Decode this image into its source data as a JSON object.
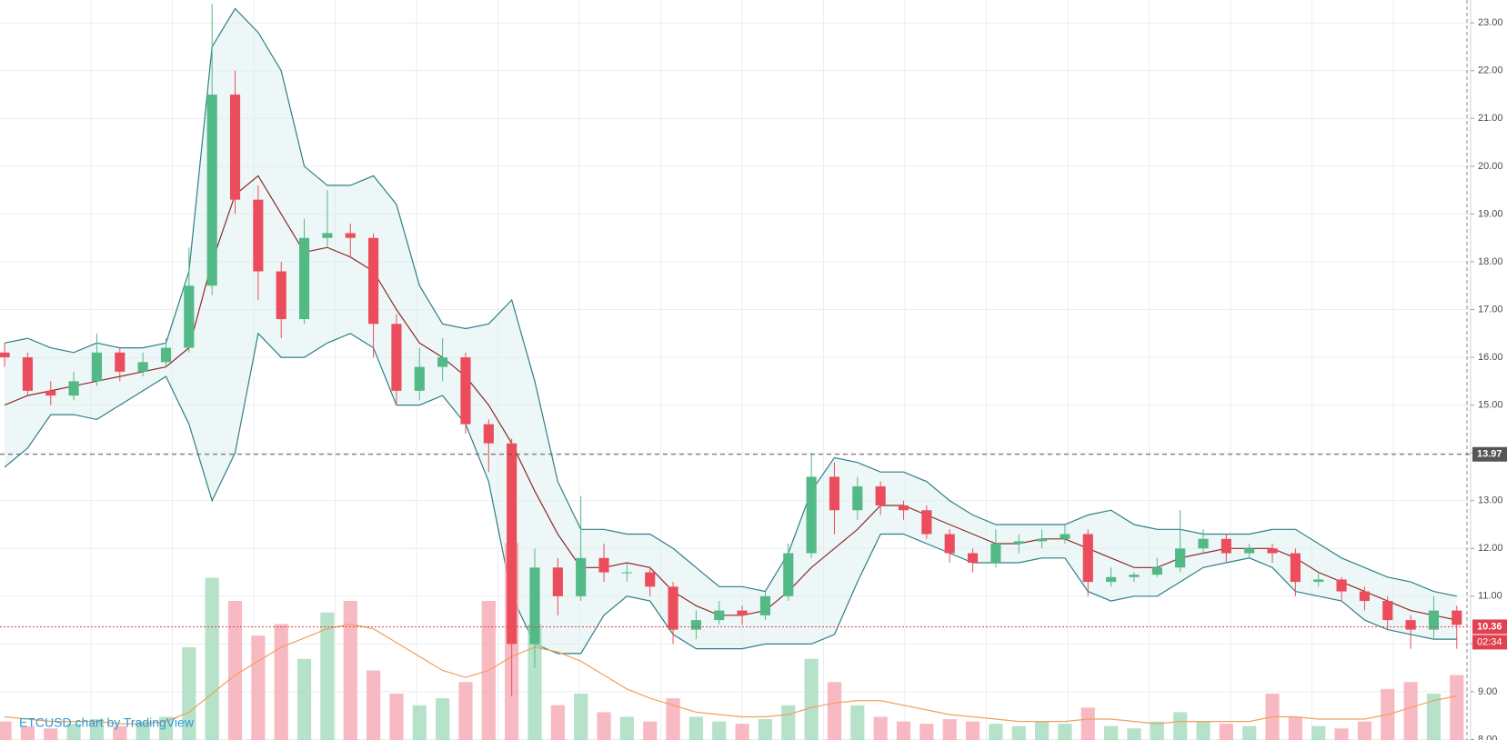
{
  "chart_data": {
    "type": "candlestick",
    "title": "ETCUSD chart by TradingView",
    "x": [
      0,
      1,
      2,
      3,
      4,
      5,
      6,
      7,
      8,
      9,
      10,
      11,
      12,
      13,
      14,
      15,
      16,
      17,
      18,
      19,
      20,
      21,
      22,
      23,
      24,
      25,
      26,
      27,
      28,
      29,
      30,
      31,
      32,
      33,
      34,
      35,
      36,
      37,
      38,
      39,
      40,
      41,
      42,
      43,
      44,
      45,
      46,
      47,
      48,
      49,
      50,
      51,
      52,
      53,
      54,
      55,
      56,
      57,
      58,
      59,
      60,
      61,
      62,
      63
    ],
    "xlim": [
      -0.2,
      63.6
    ],
    "ylim": [
      7.99,
      23.48
    ],
    "yticks": [
      {
        "value": 8,
        "label": "8.00"
      },
      {
        "value": 9,
        "label": "9.00"
      },
      {
        "value": 10,
        "label": "10.00"
      },
      {
        "value": 11,
        "label": "11.00"
      },
      {
        "value": 12,
        "label": "12.00"
      },
      {
        "value": 13,
        "label": "13.00"
      },
      {
        "value": 14,
        "label": "14.00"
      },
      {
        "value": 15,
        "label": "15.00"
      },
      {
        "value": 16,
        "label": "16.00"
      },
      {
        "value": 17,
        "label": "17.00"
      },
      {
        "value": 18,
        "label": "18.00"
      },
      {
        "value": 19,
        "label": "19.00"
      },
      {
        "value": 20,
        "label": "20.00"
      },
      {
        "value": 21,
        "label": "21.00"
      },
      {
        "value": 22,
        "label": "22.00"
      },
      {
        "value": 23,
        "label": "23.00"
      }
    ],
    "grid": true,
    "up_color": "#53b987",
    "down_color": "#eb4d5c",
    "open": [
      16.1,
      16.0,
      15.3,
      15.2,
      15.5,
      16.1,
      15.7,
      15.9,
      16.2,
      17.5,
      21.5,
      19.3,
      17.8,
      16.8,
      18.5,
      18.6,
      18.5,
      16.7,
      15.3,
      15.8,
      16.0,
      14.6,
      14.2,
      10.0,
      11.6,
      11.0,
      11.8,
      11.5,
      11.5,
      11.2,
      10.3,
      10.5,
      10.7,
      10.6,
      11.0,
      11.9,
      13.5,
      12.8,
      13.3,
      12.9,
      12.8,
      12.3,
      11.9,
      11.7,
      12.1,
      12.15,
      12.2,
      12.3,
      11.3,
      11.4,
      11.45,
      11.6,
      12.0,
      12.2,
      11.9,
      12.0,
      11.9,
      11.3,
      11.35,
      11.1,
      10.9,
      10.5,
      10.3,
      10.7
    ],
    "high": [
      16.3,
      16.1,
      15.5,
      15.7,
      16.5,
      16.2,
      16.1,
      16.4,
      18.3,
      23.4,
      22.0,
      19.6,
      18.0,
      18.9,
      19.5,
      18.8,
      18.6,
      16.9,
      16.2,
      16.4,
      16.1,
      14.7,
      14.3,
      12.0,
      11.8,
      13.1,
      12.1,
      11.7,
      11.6,
      11.3,
      10.7,
      10.9,
      10.8,
      11.1,
      12.1,
      14.0,
      13.8,
      13.5,
      13.4,
      13.0,
      12.9,
      12.4,
      12.0,
      12.4,
      12.3,
      12.4,
      12.5,
      12.4,
      11.6,
      11.5,
      11.8,
      12.8,
      12.4,
      12.3,
      12.1,
      12.1,
      12.0,
      11.5,
      11.4,
      11.2,
      11.0,
      10.6,
      11.0,
      10.8
    ],
    "low": [
      15.8,
      15.2,
      15.0,
      15.1,
      15.4,
      15.5,
      15.6,
      15.8,
      16.1,
      17.3,
      19.0,
      17.2,
      16.4,
      16.7,
      18.3,
      18.1,
      16.0,
      15.0,
      15.1,
      15.5,
      14.4,
      13.6,
      8.9,
      9.5,
      10.6,
      10.9,
      11.3,
      11.3,
      11.0,
      10.0,
      10.1,
      10.4,
      10.4,
      10.5,
      10.9,
      11.8,
      12.3,
      12.6,
      12.7,
      12.6,
      12.2,
      11.7,
      11.5,
      11.6,
      11.9,
      12.0,
      12.1,
      11.0,
      11.2,
      11.3,
      11.4,
      11.5,
      11.9,
      11.7,
      11.8,
      11.7,
      11.0,
      11.2,
      10.9,
      10.7,
      10.3,
      9.9,
      10.1,
      9.9
    ],
    "close": [
      16.0,
      15.3,
      15.2,
      15.5,
      16.1,
      15.7,
      15.9,
      16.2,
      17.5,
      21.5,
      19.3,
      17.8,
      16.8,
      18.5,
      18.6,
      18.5,
      16.7,
      15.3,
      15.8,
      16.0,
      14.6,
      14.2,
      10.0,
      11.6,
      11.0,
      11.8,
      11.5,
      11.5,
      11.2,
      10.3,
      10.5,
      10.7,
      10.6,
      11.0,
      11.9,
      13.5,
      12.8,
      13.3,
      12.9,
      12.8,
      12.3,
      11.9,
      11.7,
      12.1,
      12.15,
      12.2,
      12.3,
      11.3,
      11.4,
      11.45,
      11.6,
      12.0,
      12.2,
      11.9,
      12.0,
      11.9,
      11.3,
      11.35,
      11.1,
      10.9,
      10.5,
      10.3,
      10.7,
      10.4
    ],
    "volume": [
      8,
      6,
      5,
      7,
      9,
      6,
      8,
      10,
      40,
      70,
      60,
      45,
      50,
      35,
      55,
      60,
      30,
      20,
      15,
      18,
      25,
      60,
      85,
      50,
      15,
      20,
      12,
      10,
      8,
      18,
      10,
      8,
      7,
      9,
      15,
      35,
      25,
      15,
      10,
      8,
      7,
      9,
      8,
      7,
      6,
      8,
      7,
      14,
      6,
      5,
      8,
      12,
      8,
      7,
      6,
      20,
      10,
      6,
      5,
      8,
      22,
      25,
      20,
      28
    ],
    "volume_ma": [
      10,
      9,
      8,
      8,
      8,
      7,
      7,
      8,
      12,
      20,
      28,
      34,
      40,
      44,
      48,
      50,
      48,
      42,
      36,
      30,
      27,
      30,
      36,
      40,
      38,
      34,
      28,
      22,
      18,
      15,
      12,
      11,
      10,
      10,
      11,
      14,
      16,
      17,
      17,
      15,
      13,
      11,
      10,
      9,
      8,
      8,
      8,
      9,
      9,
      8,
      7,
      8,
      8,
      8,
      8,
      10,
      10,
      9,
      9,
      9,
      11,
      14,
      17,
      19
    ],
    "y2lim": [
      0,
      100
    ],
    "bollinger": {
      "upper": [
        16.3,
        16.4,
        16.2,
        16.1,
        16.3,
        16.2,
        16.2,
        16.3,
        17.8,
        22.5,
        23.3,
        22.8,
        22.0,
        20.0,
        19.6,
        19.6,
        19.8,
        19.2,
        17.5,
        16.7,
        16.6,
        16.7,
        17.2,
        15.5,
        13.4,
        12.4,
        12.4,
        12.3,
        12.3,
        12.0,
        11.6,
        11.2,
        11.2,
        11.1,
        11.9,
        13.2,
        13.9,
        13.8,
        13.6,
        13.6,
        13.4,
        13.0,
        12.7,
        12.5,
        12.5,
        12.5,
        12.5,
        12.7,
        12.8,
        12.5,
        12.4,
        12.4,
        12.3,
        12.3,
        12.3,
        12.4,
        12.4,
        12.1,
        11.8,
        11.6,
        11.4,
        11.3,
        11.1,
        11.0
      ],
      "middle": [
        15.0,
        15.2,
        15.3,
        15.4,
        15.5,
        15.6,
        15.7,
        15.8,
        16.2,
        18.0,
        19.4,
        19.8,
        19.0,
        18.2,
        18.3,
        18.1,
        17.8,
        17.0,
        16.3,
        16.0,
        15.6,
        15.0,
        14.2,
        13.2,
        12.3,
        11.6,
        11.6,
        11.7,
        11.6,
        11.1,
        10.8,
        10.6,
        10.6,
        10.7,
        11.1,
        11.6,
        12.0,
        12.4,
        12.9,
        12.9,
        12.7,
        12.5,
        12.3,
        12.1,
        12.1,
        12.2,
        12.2,
        12.0,
        11.8,
        11.6,
        11.6,
        11.8,
        11.9,
        12.0,
        12.0,
        12.0,
        11.8,
        11.5,
        11.3,
        11.1,
        10.9,
        10.7,
        10.6,
        10.5
      ],
      "lower": [
        13.7,
        14.1,
        14.8,
        14.8,
        14.7,
        15.0,
        15.3,
        15.6,
        14.6,
        13.0,
        14.0,
        16.5,
        16.0,
        16.0,
        16.3,
        16.5,
        16.2,
        15.0,
        15.0,
        15.2,
        14.6,
        13.4,
        11.0,
        10.0,
        9.8,
        9.8,
        10.6,
        11.0,
        10.9,
        10.2,
        9.9,
        9.9,
        9.9,
        10.0,
        10.0,
        10.0,
        10.2,
        11.3,
        12.3,
        12.3,
        12.1,
        11.9,
        11.7,
        11.7,
        11.7,
        11.8,
        11.8,
        11.1,
        10.9,
        11.0,
        11.0,
        11.3,
        11.6,
        11.7,
        11.8,
        11.6,
        11.1,
        11.0,
        10.9,
        10.5,
        10.3,
        10.2,
        10.1,
        10.1
      ]
    },
    "price_lines": [
      {
        "value": 13.97,
        "label": "13.97"
      },
      {
        "value": 10.36,
        "label": "10.36"
      }
    ],
    "countdown": "02:34"
  }
}
